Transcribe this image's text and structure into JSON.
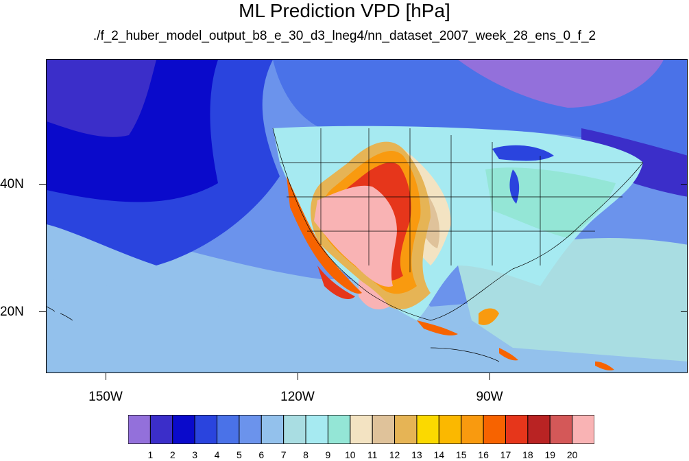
{
  "title": "ML Prediction VPD [hPa]",
  "subtitle": "./f_2_huber_model_output_b8_e_30_d3_lneg4/nn_dataset_2007_week_28_ens_0_f_2",
  "lat_labels": [
    "40N",
    "20N"
  ],
  "lon_labels": [
    "150W",
    "120W",
    "90W"
  ],
  "colorbar": {
    "labels": [
      "1",
      "2",
      "3",
      "4",
      "5",
      "6",
      "7",
      "8",
      "9",
      "10",
      "11",
      "12",
      "13",
      "14",
      "15",
      "16",
      "17",
      "18",
      "19",
      "20"
    ],
    "colors": [
      "#9370db",
      "#3b2ec9",
      "#0a0acb",
      "#2a44de",
      "#4a72e8",
      "#6b93ec",
      "#93c1ec",
      "#a9dde2",
      "#a6eaf1",
      "#94e6d6",
      "#f3e3c2",
      "#dfc29a",
      "#e6b455",
      "#fbd900",
      "#fbb800",
      "#f99a0f",
      "#f76300",
      "#e6361b",
      "#b92323",
      "#d45858",
      "#f9b3b4"
    ]
  }
}
